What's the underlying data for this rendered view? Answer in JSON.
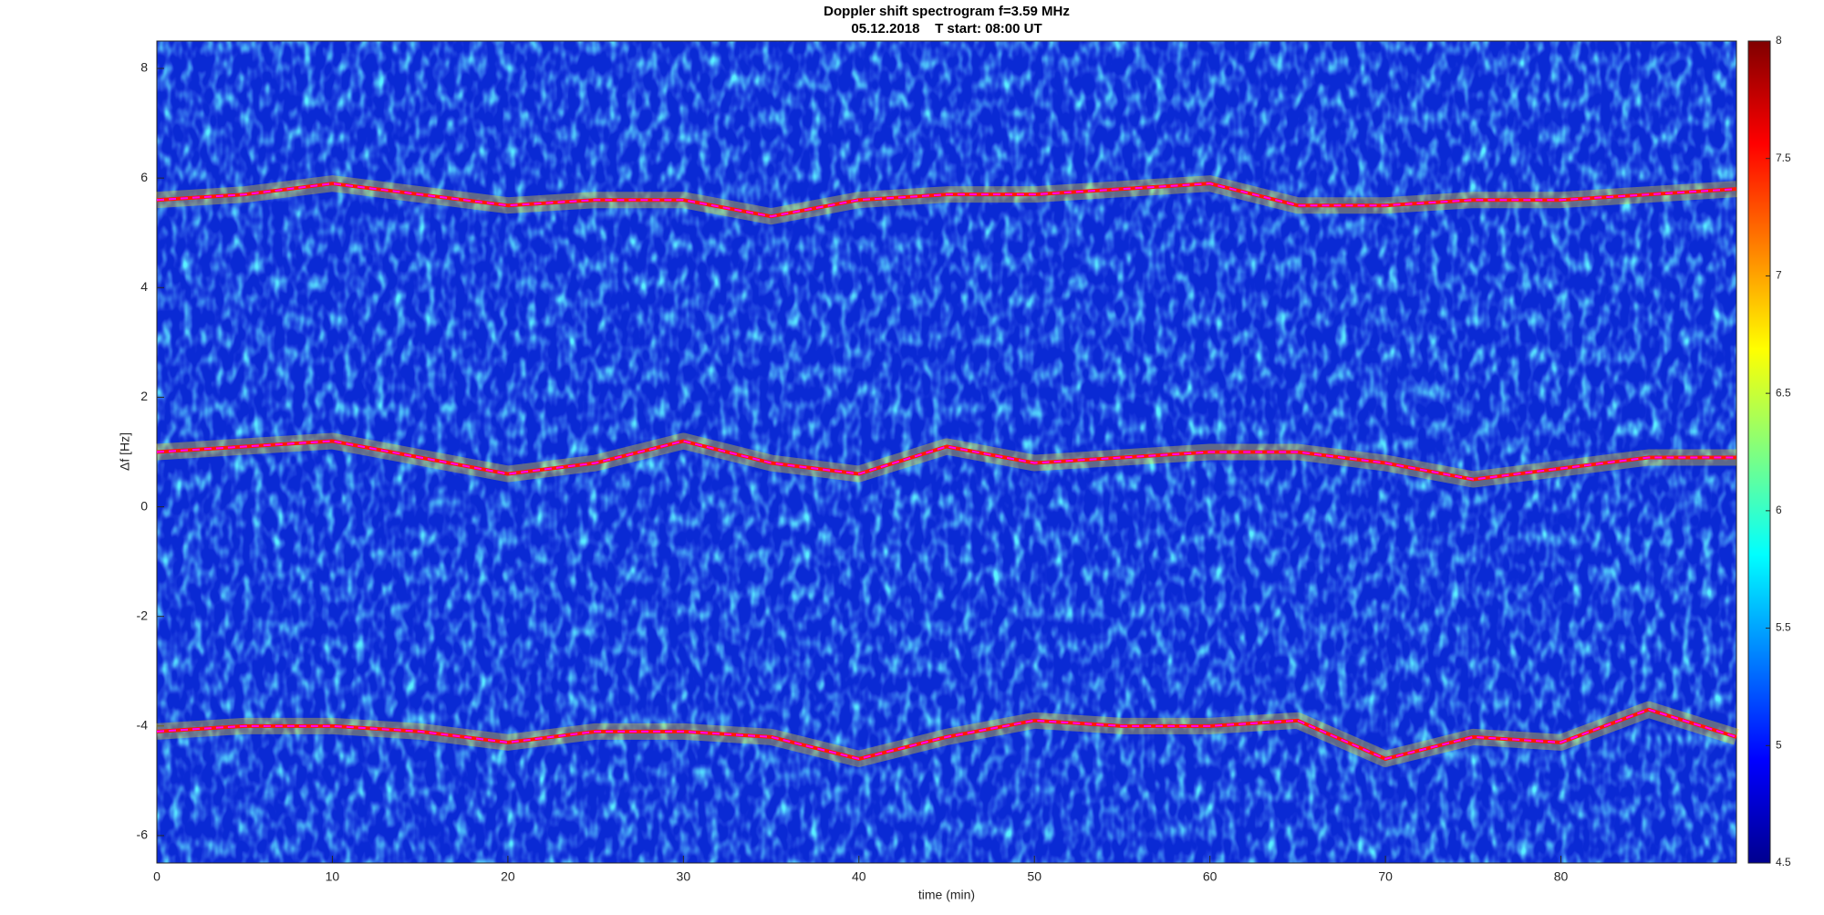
{
  "chart_data": {
    "type": "spectrogram",
    "title": "Doppler shift spectrogram f=3.59 MHz",
    "subtitle": "05.12.2018    T start: 08:00 UT",
    "x_label": "time (min)",
    "y_label": "Δf [Hz]",
    "xlim": [
      0,
      90
    ],
    "xticks": [
      0,
      10,
      20,
      30,
      40,
      50,
      60,
      70,
      80
    ],
    "ylim": [
      -6.5,
      8.5
    ],
    "yticks": [
      -6,
      -4,
      -2,
      0,
      2,
      4,
      6,
      8
    ],
    "colormap": "jet",
    "clim": [
      4.5,
      8
    ],
    "cticks": [
      4.5,
      5,
      5.5,
      6,
      6.5,
      7,
      7.5,
      8
    ],
    "x": [
      0,
      5,
      10,
      15,
      20,
      25,
      30,
      35,
      40,
      45,
      50,
      55,
      60,
      65,
      70,
      75,
      80,
      85,
      90
    ],
    "series": [
      {
        "color": "#ff00ff",
        "values": [
          5.6,
          5.7,
          5.9,
          5.7,
          5.5,
          5.6,
          5.6,
          5.3,
          5.6,
          5.7,
          5.7,
          5.8,
          5.9,
          5.5,
          5.5,
          5.6,
          5.6,
          5.7,
          5.8
        ]
      },
      {
        "color": "#ff00ff",
        "values": [
          1.0,
          1.1,
          1.2,
          0.9,
          0.6,
          0.8,
          1.2,
          0.8,
          0.6,
          1.1,
          0.8,
          0.9,
          1.0,
          1.0,
          0.8,
          0.5,
          0.7,
          0.9,
          0.9
        ]
      },
      {
        "color": "#ff00ff",
        "values": [
          -4.1,
          -4.0,
          -4.0,
          -4.1,
          -4.3,
          -4.1,
          -4.1,
          -4.2,
          -4.6,
          -4.2,
          -3.9,
          -4.0,
          -4.0,
          -3.9,
          -4.6,
          -4.2,
          -4.3,
          -3.7,
          -4.2
        ]
      }
    ]
  }
}
